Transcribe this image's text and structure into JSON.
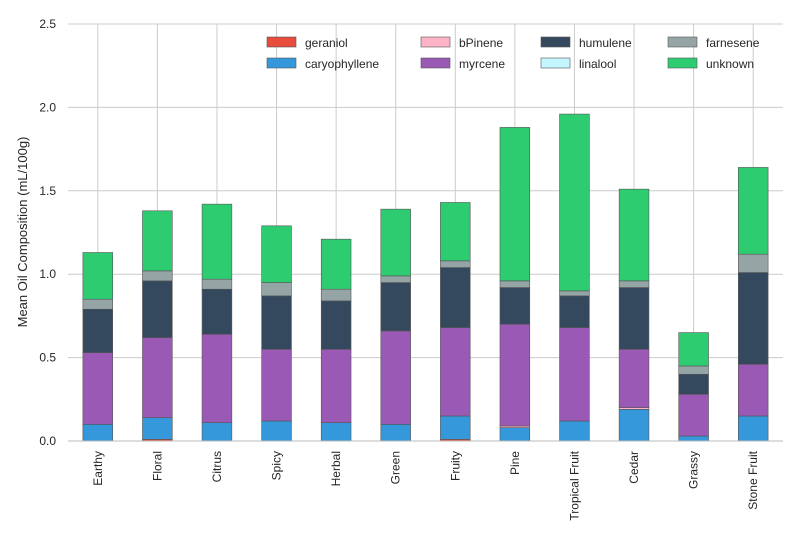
{
  "chart_data": {
    "type": "bar",
    "stacked": true,
    "title": "",
    "xlabel": "",
    "ylabel": "Mean Oil Composition (mL/100g)",
    "ylim": [
      0,
      2.5
    ],
    "yticks": [
      "0.0",
      "0.5",
      "1.0",
      "1.5",
      "2.0",
      "2.5"
    ],
    "grid": true,
    "legend_position": "top-right",
    "categories": [
      "Earthy",
      "Floral",
      "Citrus",
      "Spicy",
      "Herbal",
      "Green",
      "Fruity",
      "Pine",
      "Tropical Fruit",
      "Cedar",
      "Grassy",
      "Stone Fruit"
    ],
    "series": [
      {
        "name": "geraniol",
        "color": "#e74c3c",
        "values": [
          0.0,
          0.01,
          0.0,
          0.0,
          0.0,
          0.0,
          0.01,
          0.0,
          0.0,
          0.0,
          0.0,
          0.0
        ]
      },
      {
        "name": "caryophyllene",
        "color": "#3498db",
        "values": [
          0.1,
          0.13,
          0.11,
          0.12,
          0.11,
          0.1,
          0.14,
          0.08,
          0.12,
          0.19,
          0.03,
          0.15
        ]
      },
      {
        "name": "bPinene",
        "color": "#ffb3c6",
        "values": [
          0.0,
          0.0,
          0.0,
          0.0,
          0.0,
          0.0,
          0.0,
          0.01,
          0.0,
          0.01,
          0.0,
          0.0
        ]
      },
      {
        "name": "myrcene",
        "color": "#9b59b6",
        "values": [
          0.43,
          0.48,
          0.53,
          0.43,
          0.44,
          0.56,
          0.53,
          0.61,
          0.56,
          0.35,
          0.25,
          0.31
        ]
      },
      {
        "name": "humulene",
        "color": "#34495e",
        "values": [
          0.26,
          0.34,
          0.27,
          0.32,
          0.29,
          0.29,
          0.36,
          0.22,
          0.19,
          0.37,
          0.12,
          0.55
        ]
      },
      {
        "name": "linalool",
        "color": "#c4f6ff",
        "values": [
          0.0,
          0.0,
          0.0,
          0.0,
          0.0,
          0.0,
          0.0,
          0.0,
          0.0,
          0.0,
          0.0,
          0.0
        ]
      },
      {
        "name": "farnesene",
        "color": "#95a5a6",
        "values": [
          0.06,
          0.06,
          0.06,
          0.08,
          0.07,
          0.04,
          0.04,
          0.04,
          0.03,
          0.04,
          0.05,
          0.11
        ]
      },
      {
        "name": "unknown",
        "color": "#2ecc71",
        "values": [
          0.28,
          0.36,
          0.45,
          0.34,
          0.3,
          0.4,
          0.35,
          0.92,
          1.06,
          0.55,
          0.2,
          0.52
        ]
      }
    ]
  }
}
